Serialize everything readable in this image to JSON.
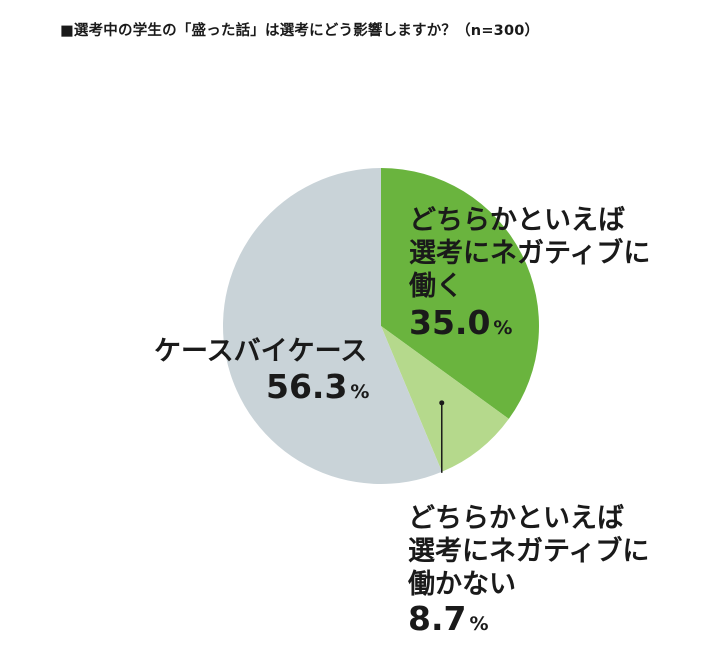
{
  "title": "■選考中の学生の「盛った話」は選考にどう影響しますか？（n=300）",
  "chart_data": {
    "type": "pie",
    "start_angle_deg": 0,
    "direction": "clockwise",
    "slices": [
      {
        "label_lines": [
          "どちらかといえば",
          "選考にネガティブに",
          "働く"
        ],
        "value": 35.0,
        "value_text": "35.0",
        "unit": "%",
        "color": "#6ab43e"
      },
      {
        "label_lines": [
          "どちらかといえば",
          "選考にネガティブに",
          "働かない"
        ],
        "value": 8.7,
        "value_text": "8.7",
        "unit": "%",
        "color": "#b5d98c"
      },
      {
        "label_lines": [
          "ケースバイケース"
        ],
        "value": 56.3,
        "value_text": "56.3",
        "unit": "%",
        "color": "#c9d3d8"
      }
    ]
  }
}
